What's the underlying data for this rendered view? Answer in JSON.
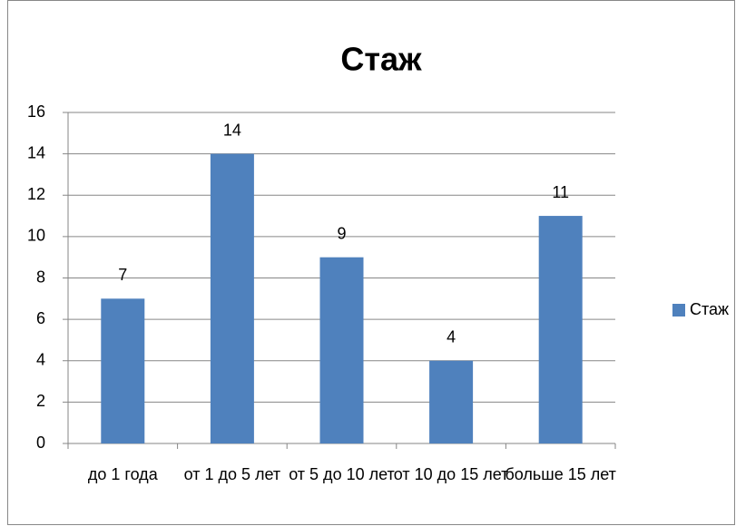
{
  "chart_data": {
    "type": "bar",
    "title": "Стаж",
    "categories": [
      "до 1 года",
      "от 1 до 5 лет",
      "от 5 до 10 лет",
      "от 10 до 15 лет",
      "больше 15 лет"
    ],
    "series": [
      {
        "name": "Стаж",
        "color": "#4f81bd",
        "values": [
          7,
          14,
          9,
          4,
          11
        ]
      }
    ],
    "ylim": [
      0,
      16
    ],
    "yticks": [
      0,
      2,
      4,
      6,
      8,
      10,
      12,
      14,
      16
    ],
    "grid": true,
    "legend": "right"
  }
}
